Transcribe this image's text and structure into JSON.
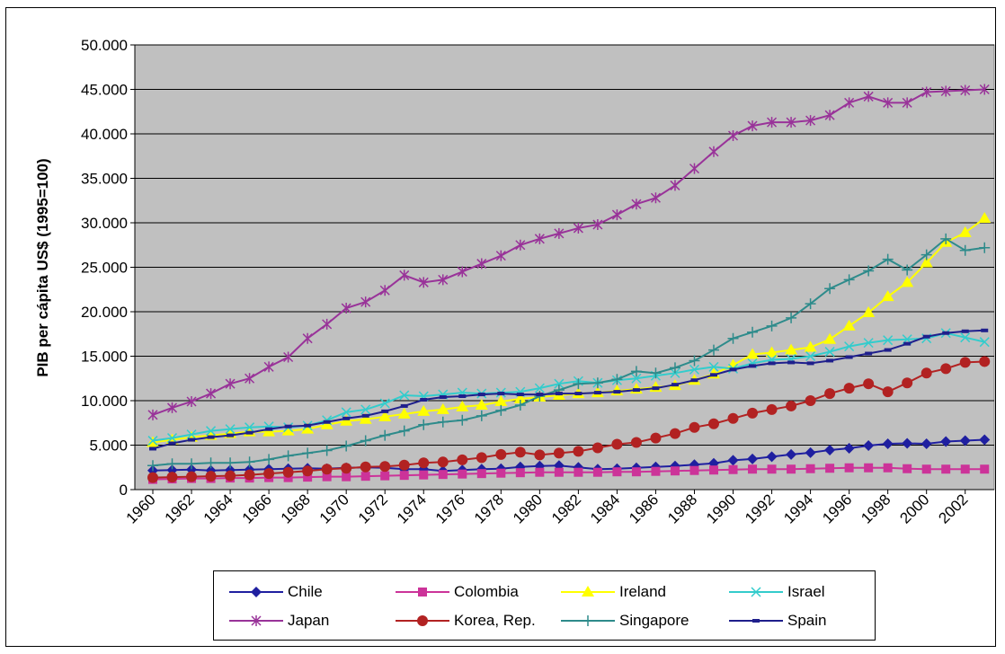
{
  "chart_data": {
    "type": "line",
    "title": "",
    "xlabel": "",
    "ylabel": "PIB per cápita US$ (1995=100)",
    "ylim": [
      0,
      50000
    ],
    "y_ticks": [
      "0",
      "5.000",
      "10.000",
      "15.000",
      "20.000",
      "25.000",
      "30.000",
      "35.000",
      "40.000",
      "45.000",
      "50.000"
    ],
    "x_tick_labels": [
      "1960",
      "1962",
      "1964",
      "1966",
      "1968",
      "1970",
      "1972",
      "1974",
      "1976",
      "1978",
      "1980",
      "1982",
      "1984",
      "1986",
      "1988",
      "1990",
      "1992",
      "1994",
      "1996",
      "1998",
      "2000",
      "2002"
    ],
    "grid": "horizontal",
    "plot_background": "#c0c0c0",
    "legend_position": "bottom",
    "x": [
      1960,
      1961,
      1962,
      1963,
      1964,
      1965,
      1966,
      1967,
      1968,
      1969,
      1970,
      1971,
      1972,
      1973,
      1974,
      1975,
      1976,
      1977,
      1978,
      1979,
      1980,
      1981,
      1982,
      1983,
      1984,
      1985,
      1986,
      1987,
      1988,
      1989,
      1990,
      1991,
      1992,
      1993,
      1994,
      1995,
      1996,
      1997,
      1998,
      1999,
      2000,
      2001,
      2002,
      2003
    ],
    "series": [
      {
        "name": "Chile",
        "color": "#1f1fa0",
        "marker": "diamond",
        "values": [
          2150,
          2200,
          2250,
          2150,
          2200,
          2250,
          2300,
          2350,
          2400,
          2350,
          2450,
          2500,
          2450,
          2300,
          2300,
          2100,
          2200,
          2300,
          2350,
          2550,
          2650,
          2700,
          2500,
          2300,
          2350,
          2450,
          2550,
          2650,
          2800,
          2950,
          3300,
          3450,
          3700,
          3950,
          4150,
          4450,
          4650,
          4950,
          5150,
          5200,
          5150,
          5400,
          5500,
          5600
        ]
      },
      {
        "name": "Colombia",
        "color": "#cc3399",
        "marker": "square",
        "values": [
          1150,
          1200,
          1250,
          1250,
          1300,
          1300,
          1350,
          1350,
          1400,
          1450,
          1450,
          1500,
          1550,
          1600,
          1650,
          1700,
          1750,
          1800,
          1850,
          1900,
          1950,
          1950,
          1950,
          1950,
          2000,
          2000,
          2050,
          2100,
          2150,
          2200,
          2250,
          2300,
          2300,
          2300,
          2350,
          2400,
          2450,
          2450,
          2450,
          2350,
          2300,
          2300,
          2300,
          2300
        ]
      },
      {
        "name": "Ireland",
        "color": "#ffff00",
        "marker": "triangle",
        "values": [
          5300,
          5600,
          5900,
          6100,
          6300,
          6500,
          6500,
          6600,
          6800,
          7300,
          7700,
          7900,
          8200,
          8500,
          8800,
          9000,
          9300,
          9500,
          9900,
          10200,
          10400,
          10600,
          10800,
          10900,
          11100,
          11300,
          11500,
          11700,
          12300,
          13000,
          14000,
          15200,
          15400,
          15700,
          16000,
          16900,
          18400,
          19900,
          21700,
          23300,
          25500,
          27800,
          28900,
          30500
        ]
      },
      {
        "name": "Israel",
        "color": "#33cccc",
        "marker": "x",
        "values": [
          5500,
          5800,
          6200,
          6600,
          6800,
          7000,
          7100,
          7000,
          7200,
          7800,
          8700,
          9000,
          9700,
          10600,
          10500,
          10700,
          10900,
          10800,
          10900,
          11000,
          11400,
          11900,
          12200,
          12000,
          12300,
          12500,
          12800,
          13100,
          13500,
          13800,
          13600,
          14200,
          14600,
          14700,
          15000,
          15500,
          16100,
          16500,
          16800,
          16900,
          17000,
          17600,
          17100,
          16600
        ]
      },
      {
        "name": "Japan",
        "color": "#993399",
        "marker": "star",
        "values": [
          8400,
          9200,
          9900,
          10800,
          11900,
          12500,
          13800,
          14900,
          17000,
          18600,
          20400,
          21100,
          22400,
          24100,
          23300,
          23600,
          24500,
          25400,
          26300,
          27500,
          28200,
          28800,
          29400,
          29800,
          30900,
          32100,
          32800,
          34200,
          36100,
          38000,
          39800,
          40900,
          41300,
          41300,
          41500,
          42100,
          43500,
          44200,
          43500,
          43500,
          44700,
          44800,
          44900,
          45000
        ]
      },
      {
        "name": "Korea, Rep.",
        "color": "#b22222",
        "marker": "circle",
        "values": [
          1350,
          1400,
          1450,
          1500,
          1550,
          1650,
          1800,
          1950,
          2100,
          2300,
          2400,
          2550,
          2600,
          2750,
          3000,
          3100,
          3350,
          3600,
          3950,
          4200,
          3900,
          4100,
          4300,
          4700,
          5100,
          5300,
          5800,
          6300,
          7000,
          7400,
          8000,
          8600,
          9000,
          9400,
          10000,
          10800,
          11400,
          11900,
          11000,
          12000,
          13100,
          13600,
          14300,
          14400
        ]
      },
      {
        "name": "Singapore",
        "color": "#2e8b8b",
        "marker": "plus",
        "values": [
          2700,
          2900,
          2900,
          3000,
          3000,
          3100,
          3400,
          3800,
          4100,
          4400,
          4900,
          5500,
          6100,
          6600,
          7300,
          7600,
          7800,
          8300,
          8900,
          9500,
          10500,
          11200,
          11900,
          12000,
          12400,
          13300,
          13100,
          13700,
          14500,
          15700,
          17000,
          17700,
          18400,
          19300,
          20900,
          22600,
          23600,
          24600,
          25900,
          24700,
          26400,
          28200,
          26900,
          27200
        ]
      },
      {
        "name": "Spain",
        "color": "#1f1f8c",
        "marker": "dash",
        "values": [
          4600,
          5200,
          5600,
          5900,
          6100,
          6400,
          6800,
          7100,
          7200,
          7600,
          8000,
          8300,
          8800,
          9400,
          10100,
          10400,
          10500,
          10700,
          10800,
          10700,
          10700,
          10800,
          10800,
          10900,
          11000,
          11200,
          11400,
          11800,
          12300,
          12900,
          13500,
          13900,
          14200,
          14300,
          14200,
          14500,
          14900,
          15300,
          15700,
          16400,
          17200,
          17600,
          17800,
          17900
        ]
      }
    ]
  }
}
